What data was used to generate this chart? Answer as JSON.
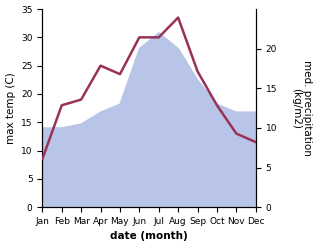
{
  "months": [
    "Jan",
    "Feb",
    "Mar",
    "Apr",
    "May",
    "Jun",
    "Jul",
    "Aug",
    "Sep",
    "Oct",
    "Nov",
    "Dec"
  ],
  "month_x": [
    0,
    1,
    2,
    3,
    4,
    5,
    6,
    7,
    8,
    9,
    10,
    11
  ],
  "temperature": [
    8.5,
    18.0,
    19.0,
    25.0,
    23.5,
    30.0,
    30.0,
    33.5,
    24.0,
    18.0,
    13.0,
    11.5
  ],
  "precipitation": [
    10.0,
    10.0,
    10.5,
    12.0,
    13.0,
    20.0,
    22.0,
    20.0,
    16.0,
    13.0,
    12.0,
    12.0
  ],
  "temp_color": "#993355",
  "precip_fill_color": "#b8c4e8",
  "precip_line_color": "#b8c4e8",
  "temp_ylim": [
    0,
    35
  ],
  "precip_ylim": [
    0,
    25
  ],
  "temp_yticks": [
    0,
    5,
    10,
    15,
    20,
    25,
    30,
    35
  ],
  "precip_yticks": [
    0,
    5,
    10,
    15,
    20
  ],
  "ylabel_left": "max temp (C)",
  "ylabel_right": "med. precipitation\n(kg/m2)",
  "xlabel": "date (month)",
  "background_color": "#ffffff",
  "linewidth": 1.8,
  "label_fontsize": 7.5,
  "tick_fontsize": 6.5
}
